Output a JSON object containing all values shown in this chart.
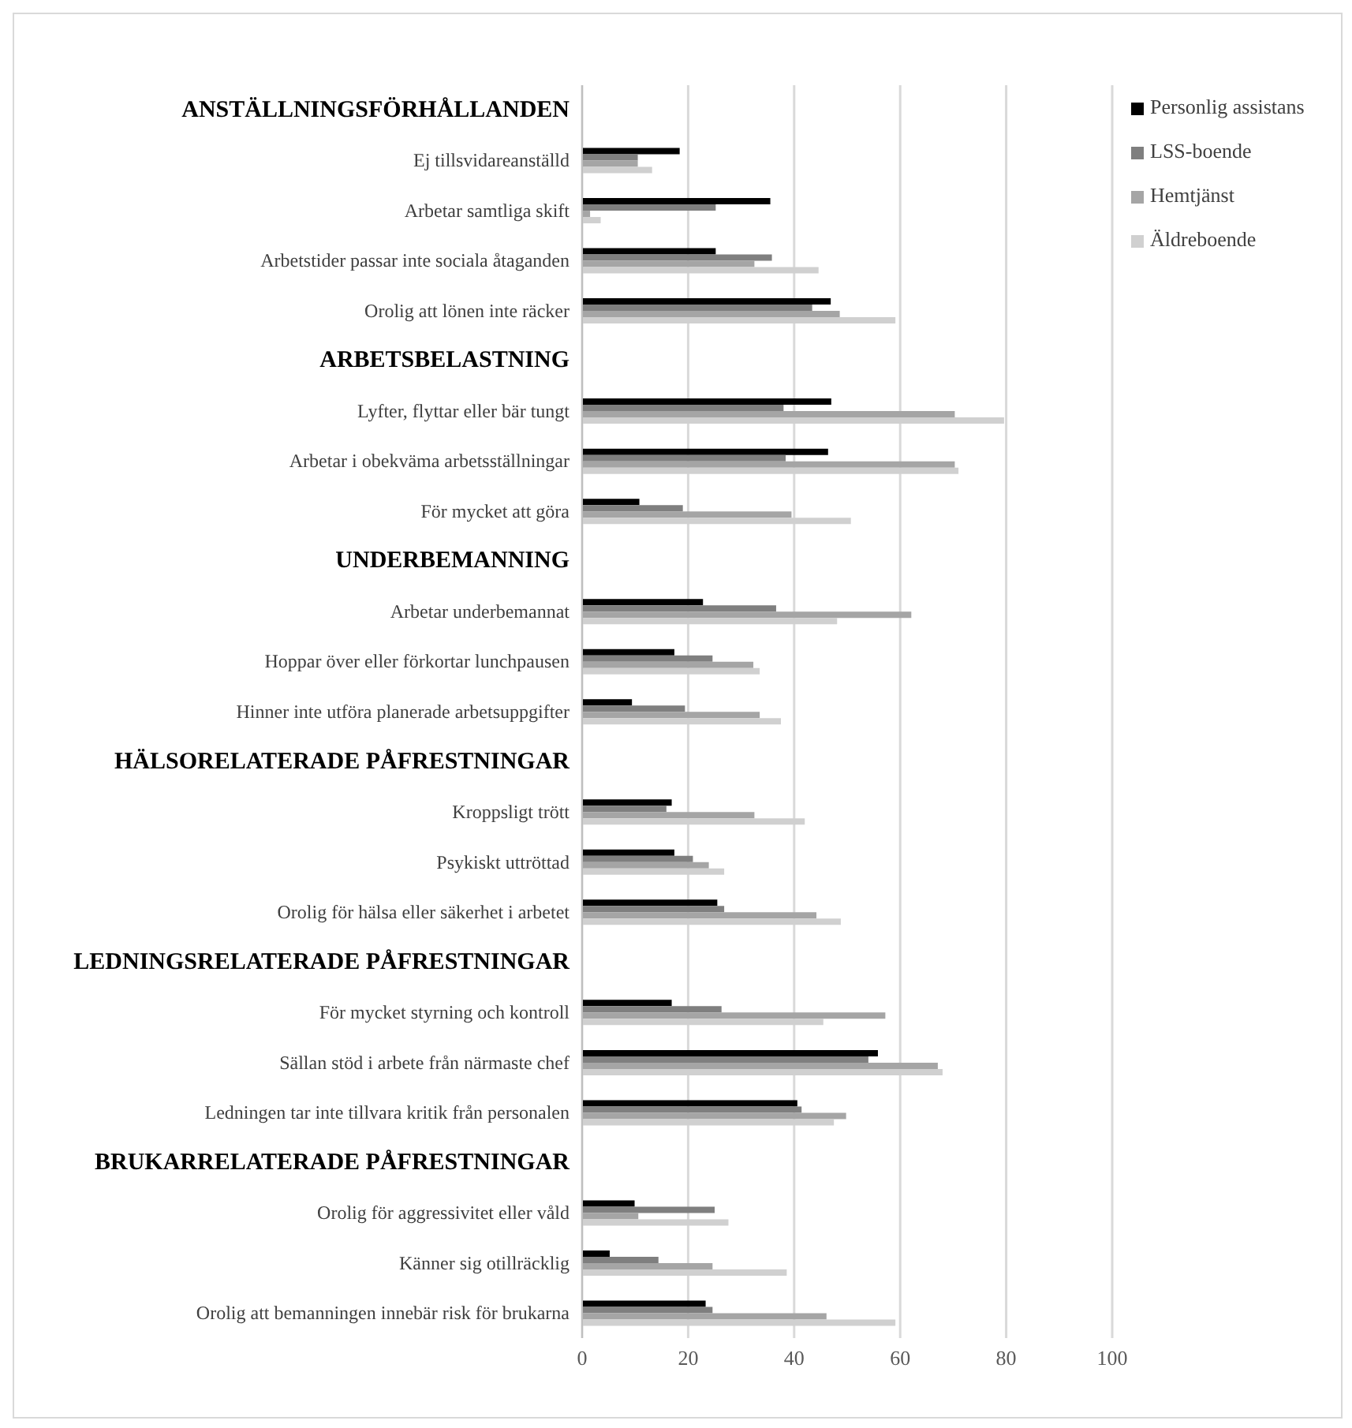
{
  "chart_data": {
    "type": "bar",
    "orientation": "horizontal",
    "categories": [
      "ANSTÄLLNINGSFÖRHÅLLANDEN",
      "Ej tillsvidareanställd",
      "Arbetar samtliga skift",
      "Arbetstider passar inte sociala åtaganden",
      "Orolig att lönen inte räcker",
      "ARBETSBELASTNING",
      "Lyfter, flyttar eller bär tungt",
      "Arbetar i obekväma arbetsställningar",
      "För mycket att göra",
      "UNDERBEMANNING",
      "Arbetar underbemannat",
      "Hoppar över eller förkortar lunchpausen",
      "Hinner inte utföra planerade arbetsuppgifter",
      "HÄLSORELATERADE PÅFRESTNINGAR",
      "Kroppsligt trött",
      "Psykiskt uttröttad",
      "Orolig för hälsa eller säkerhet i arbetet",
      "LEDNINGSRELATERADE PÅFRESTNINGAR",
      "För mycket styrning och kontroll",
      "Sällan stöd i arbete från närmaste chef",
      "Ledningen tar inte tillvara kritik från personalen",
      "BRUKARRELATERADE PÅFRESTNINGAR",
      "Orolig för aggressivitet eller våld",
      "Känner sig otillräcklig",
      "Orolig att bemanningen innebär risk för brukarna"
    ],
    "series": [
      {
        "name": "Personlig assistans",
        "color": "#000000",
        "values": [
          null,
          18.4,
          35.5,
          25.2,
          46.9,
          null,
          47.0,
          46.4,
          10.8,
          null,
          22.8,
          17.4,
          9.4,
          null,
          16.9,
          17.4,
          25.5,
          null,
          16.9,
          55.8,
          40.6,
          null,
          9.9,
          5.2,
          23.3
        ]
      },
      {
        "name": "LSS-boende",
        "color": "#7f7f7f",
        "values": [
          null,
          10.5,
          25.2,
          35.8,
          43.4,
          null,
          38.0,
          38.4,
          19.0,
          null,
          36.6,
          24.6,
          19.4,
          null,
          15.9,
          20.9,
          26.8,
          null,
          26.3,
          54.0,
          41.4,
          null,
          25.0,
          14.4,
          24.6
        ]
      },
      {
        "name": "Hemtjänst",
        "color": "#a5a5a5",
        "values": [
          null,
          10.5,
          1.5,
          32.5,
          48.6,
          null,
          70.3,
          70.3,
          39.5,
          null,
          62.1,
          32.3,
          33.5,
          null,
          32.5,
          23.9,
          44.2,
          null,
          57.2,
          67.1,
          49.8,
          null,
          10.6,
          24.6,
          46.1
        ]
      },
      {
        "name": "Äldreboende",
        "color": "#d0d0d0",
        "values": [
          null,
          13.2,
          3.5,
          44.6,
          59.1,
          null,
          79.6,
          71.0,
          50.7,
          null,
          48.1,
          33.5,
          37.5,
          null,
          42.0,
          26.8,
          48.8,
          null,
          45.5,
          68.0,
          47.5,
          null,
          27.6,
          38.6,
          59.1
        ]
      }
    ],
    "xlim": [
      0,
      100
    ],
    "xticks": [
      0,
      20,
      40,
      60,
      80,
      100
    ],
    "grid": "x",
    "legend": "top right"
  }
}
